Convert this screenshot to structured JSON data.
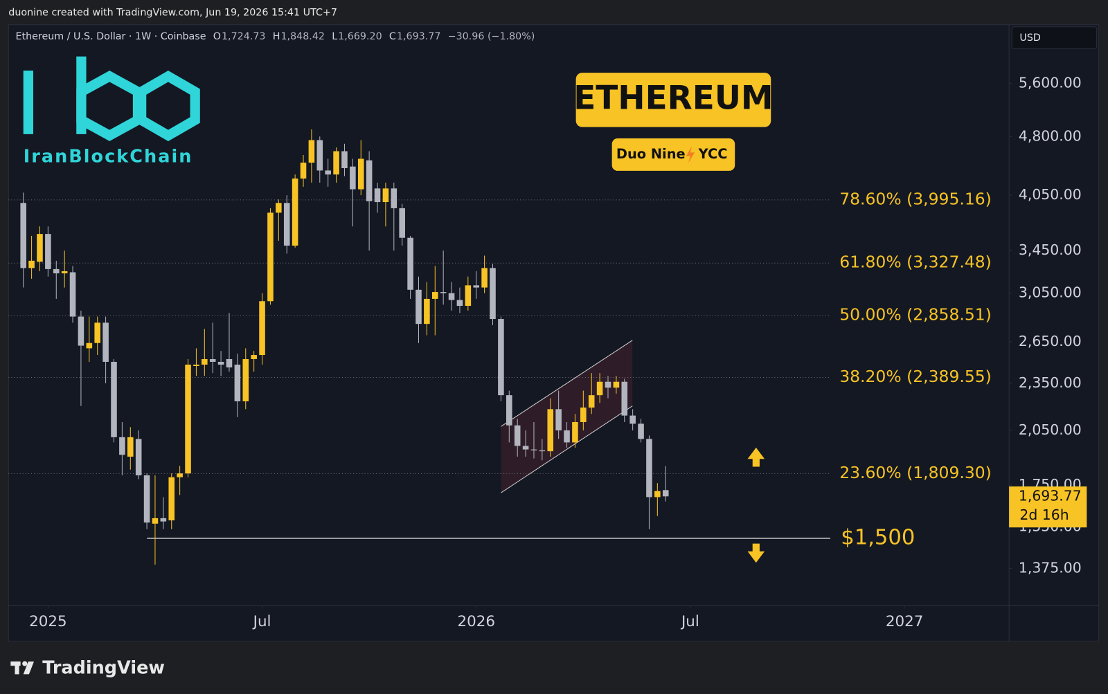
{
  "page": {
    "attribution": "duonine created with TradingView.com, Jun 19, 2026 15:41 UTC+7",
    "currency": "USD",
    "brand": "TradingView",
    "logo_text": "IranBlockChain"
  },
  "chart_data": {
    "type": "candlestick",
    "title": "ETHEREUM",
    "subtitle": [
      "Duo Nine",
      "YCC"
    ],
    "symbol": "Ethereum / U.S. Dollar · 1W · Coinbase",
    "ohlc_header": [
      {
        "key": "O",
        "value": "1,724.73"
      },
      {
        "key": "H",
        "value": "1,848.42"
      },
      {
        "key": "L",
        "value": "1,669.20"
      },
      {
        "key": "C",
        "value": "1,693.77"
      }
    ],
    "change": "−30.96 (−1.80%)",
    "up_color": "#f7c325",
    "down_color": "#b2b5be",
    "open": [
      3960,
      3280,
      3340,
      3620,
      3270,
      3230,
      3240,
      2850,
      2600,
      2640,
      2800,
      2500,
      2010,
      1900,
      2000,
      1800,
      1565,
      1590,
      1580,
      1790,
      1810,
      2470,
      2480,
      2520,
      2500,
      2520,
      2480,
      2230,
      2520,
      2550,
      2980,
      3850,
      3960,
      3500,
      4250,
      4450,
      4750,
      4350,
      4300,
      4600,
      4400,
      4120,
      4480,
      4130,
      3970,
      4130,
      3900,
      3580,
      3080,
      2790,
      3000,
      3060,
      3050,
      2990,
      2940,
      3120,
      3100,
      3280,
      2830,
      2270,
      2080,
      1960,
      1940,
      1935,
      1930,
      2180,
      2050,
      1980,
      2100,
      2190,
      2270,
      2360,
      2320,
      2360,
      2140,
      2090,
      2000,
      1690,
      1724.73
    ],
    "high": [
      4080,
      3600,
      3700,
      3700,
      3350,
      3450,
      3300,
      2900,
      2850,
      2850,
      2850,
      2520,
      2100,
      2070,
      2050,
      1810,
      1800,
      1690,
      1810,
      1850,
      2520,
      2600,
      2750,
      2800,
      2580,
      2880,
      2560,
      2600,
      2580,
      3050,
      3900,
      4000,
      4050,
      4300,
      4550,
      4900,
      4800,
      4500,
      4650,
      4700,
      4500,
      4750,
      4600,
      4200,
      4200,
      4200,
      3950,
      3600,
      3200,
      3150,
      3300,
      3450,
      3150,
      3100,
      3200,
      3250,
      3400,
      3320,
      2850,
      2300,
      2120,
      2050,
      2100,
      2000,
      2250,
      2300,
      2100,
      2150,
      2300,
      2420,
      2420,
      2400,
      2400,
      2380,
      2180,
      2120,
      2020,
      1760,
      1848.42
    ],
    "low": [
      3100,
      3180,
      3250,
      3200,
      3000,
      3100,
      2800,
      2200,
      2500,
      2550,
      2350,
      1980,
      1800,
      1830,
      1780,
      1540,
      1390,
      1540,
      1540,
      1700,
      1790,
      2400,
      2400,
      2420,
      2400,
      2430,
      2130,
      2180,
      2430,
      2480,
      2950,
      3550,
      3420,
      3480,
      4150,
      4200,
      4200,
      4150,
      4200,
      4280,
      3700,
      4050,
      3450,
      3850,
      3700,
      3450,
      3500,
      3000,
      2640,
      2700,
      2700,
      2950,
      2900,
      2880,
      2900,
      3000,
      3050,
      2780,
      2230,
      1980,
      1900,
      1900,
      1890,
      1880,
      1900,
      2000,
      1950,
      1950,
      2050,
      2150,
      2220,
      2250,
      2280,
      2100,
      2050,
      1980,
      1540,
      1600,
      1669.2
    ],
    "close": [
      3280,
      3350,
      3620,
      3270,
      3230,
      3250,
      2850,
      2620,
      2640,
      2800,
      2500,
      2010,
      1910,
      2010,
      1800,
      1570,
      1590,
      1575,
      1790,
      1810,
      2480,
      2480,
      2520,
      2500,
      2480,
      2460,
      2230,
      2520,
      2550,
      2980,
      3850,
      3960,
      3500,
      4250,
      4450,
      4750,
      4350,
      4300,
      4600,
      4380,
      4120,
      4500,
      3980,
      3970,
      4130,
      3900,
      3580,
      3080,
      2790,
      3000,
      3060,
      3050,
      2990,
      2940,
      3120,
      3100,
      3280,
      2830,
      2270,
      2080,
      1960,
      1940,
      1935,
      1930,
      2180,
      2050,
      1980,
      2100,
      2190,
      2270,
      2360,
      2320,
      2360,
      2140,
      2090,
      2000,
      1690,
      1720,
      1693.77
    ],
    "y_scale": "log",
    "ylim": [
      1234,
      6634
    ],
    "yticks": [
      {
        "value": 5600,
        "label": "5,600.00"
      },
      {
        "value": 4800,
        "label": "4,800.00"
      },
      {
        "value": 4050,
        "label": "4,050.00"
      },
      {
        "value": 3450,
        "label": "3,450.00"
      },
      {
        "value": 3050,
        "label": "3,050.00"
      },
      {
        "value": 2650,
        "label": "2,650.00"
      },
      {
        "value": 2350,
        "label": "2,350.00"
      },
      {
        "value": 2050,
        "label": "2,050.00"
      },
      {
        "value": 1750,
        "label": "1,750.00"
      },
      {
        "value": 1550,
        "label": "1,550.00"
      },
      {
        "value": 1375,
        "label": "1,375.00"
      }
    ],
    "xlim": [
      -1.8,
      119.7
    ],
    "xticks": [
      {
        "value": 3,
        "label": "2025"
      },
      {
        "value": 29,
        "label": "Jul"
      },
      {
        "value": 55,
        "label": "2026"
      },
      {
        "value": 81,
        "label": "Jul"
      },
      {
        "value": 107,
        "label": "2027"
      }
    ],
    "levels": [
      {
        "value": 3995.16,
        "label": "78.60% (3,995.16)"
      },
      {
        "value": 3327.48,
        "label": "61.80% (3,327.48)"
      },
      {
        "value": 2858.51,
        "label": "50.00% (2,858.51)"
      },
      {
        "value": 2389.55,
        "label": "38.20% (2,389.55)"
      },
      {
        "value": 1809.3,
        "label": "23.60% (1,809.30)"
      }
    ],
    "support": {
      "value": 1500,
      "label": "$1,500"
    },
    "last_price": {
      "value": 1693.77,
      "label": "1,693.77",
      "countdown": "2d 16h"
    },
    "grid": false
  }
}
